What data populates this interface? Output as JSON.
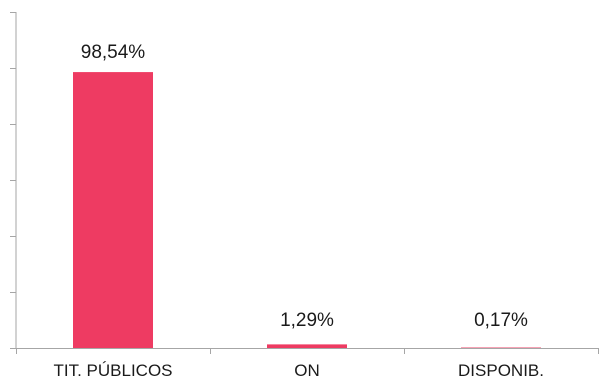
{
  "chart_data": {
    "type": "bar",
    "categories": [
      "TIT. PÚBLICOS",
      "ON",
      "DISPONIB."
    ],
    "values": [
      98.54,
      1.29,
      0.17
    ],
    "value_labels": [
      "98,54%",
      "1,29%",
      "0,17%"
    ],
    "title": "",
    "xlabel": "",
    "ylabel": "",
    "ylim": [
      0,
      120
    ],
    "grid": false,
    "legend": "none",
    "bar_color": "#EE3B62",
    "axis_color": "#a6a6a6"
  }
}
